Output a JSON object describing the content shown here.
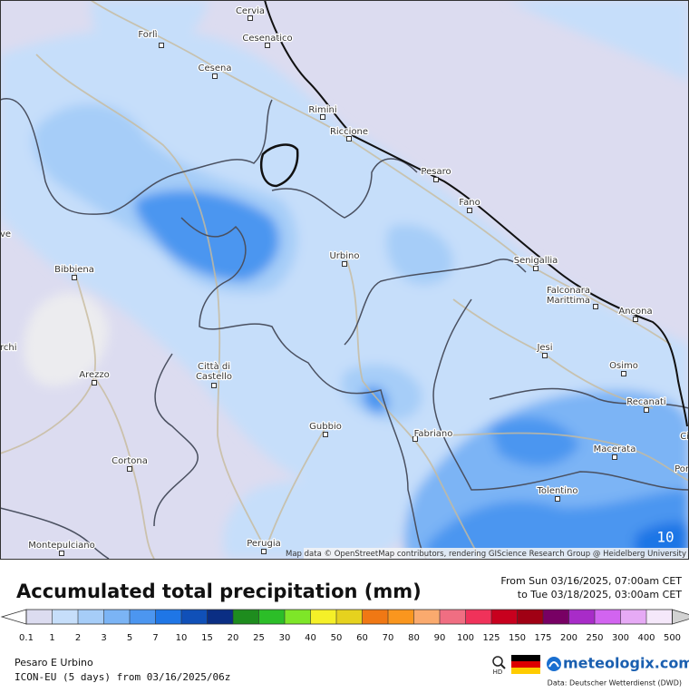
{
  "map": {
    "cities": [
      {
        "lines": [
          "Cervia"
        ]
      },
      {
        "lines": [
          "Forlì"
        ]
      },
      {
        "lines": [
          "Cesenatico"
        ]
      },
      {
        "lines": [
          "Cesena"
        ]
      },
      {
        "lines": [
          "Rimini"
        ]
      },
      {
        "lines": [
          "Riccione"
        ]
      },
      {
        "lines": [
          "Pesaro"
        ]
      },
      {
        "lines": [
          "Fano"
        ]
      },
      {
        "lines": [
          "Urbino"
        ]
      },
      {
        "lines": [
          "Bibbiena"
        ]
      },
      {
        "lines": [
          "Senigallia"
        ]
      },
      {
        "lines": [
          "Falconara",
          "Marittima"
        ]
      },
      {
        "lines": [
          "Ancona"
        ]
      },
      {
        "lines": [
          "Jesi"
        ]
      },
      {
        "lines": [
          "Osimo"
        ]
      },
      {
        "lines": [
          "Arezzo"
        ]
      },
      {
        "lines": [
          "Città di",
          "Castello"
        ]
      },
      {
        "lines": [
          "Recanati"
        ]
      },
      {
        "lines": [
          "Gubbio"
        ]
      },
      {
        "lines": [
          "Fabriano"
        ]
      },
      {
        "lines": [
          "Macerata"
        ]
      },
      {
        "lines": [
          "Cortona"
        ]
      },
      {
        "lines": [
          "Tolentino"
        ]
      },
      {
        "lines": [
          "Perugia"
        ]
      },
      {
        "lines": [
          "Montepulciano"
        ]
      },
      {
        "lines": [
          "ve"
        ]
      },
      {
        "lines": [
          "rchi"
        ]
      },
      {
        "lines": [
          "Ci"
        ]
      },
      {
        "lines": [
          "Por"
        ]
      }
    ],
    "corner_value": "10",
    "attribution": "Map data © OpenStreetMap contributors, rendering GIScience Research Group @ Heidelberg University"
  },
  "legend": {
    "title": "Accumulated total precipitation (mm)",
    "from": "From Sun 03/16/2025, 07:00am CET",
    "to": "to Tue 03/18/2025, 03:00am CET",
    "ticks": [
      0.1,
      1,
      2,
      3,
      5,
      7,
      10,
      15,
      20,
      25,
      30,
      40,
      50,
      60,
      70,
      80,
      90,
      100,
      125,
      150,
      175,
      200,
      250,
      300,
      400,
      500
    ],
    "colors": [
      "#dcdcf0",
      "#c6defa",
      "#a6cdf8",
      "#7bb4f5",
      "#4c96f0",
      "#1f76e6",
      "#1050b8",
      "#0a2e84",
      "#1e8c1e",
      "#2cbe28",
      "#7ee628",
      "#f5f028",
      "#e6d21e",
      "#f07814",
      "#fa961e",
      "#faaa6e",
      "#f06e82",
      "#f0325a",
      "#c8001e",
      "#a00014",
      "#780064",
      "#a82cc8",
      "#d264f0",
      "#e6aaf5",
      "#f5e8fa",
      "#d2d2d2"
    ]
  },
  "footer": {
    "region": "Pesaro E Urbino",
    "model": "ICON-EU (5 days) from 03/16/2025/06z",
    "hd": "HD",
    "brand": "meteologix.com",
    "source": "Data: Deutscher Wetterdienst (DWD)"
  }
}
